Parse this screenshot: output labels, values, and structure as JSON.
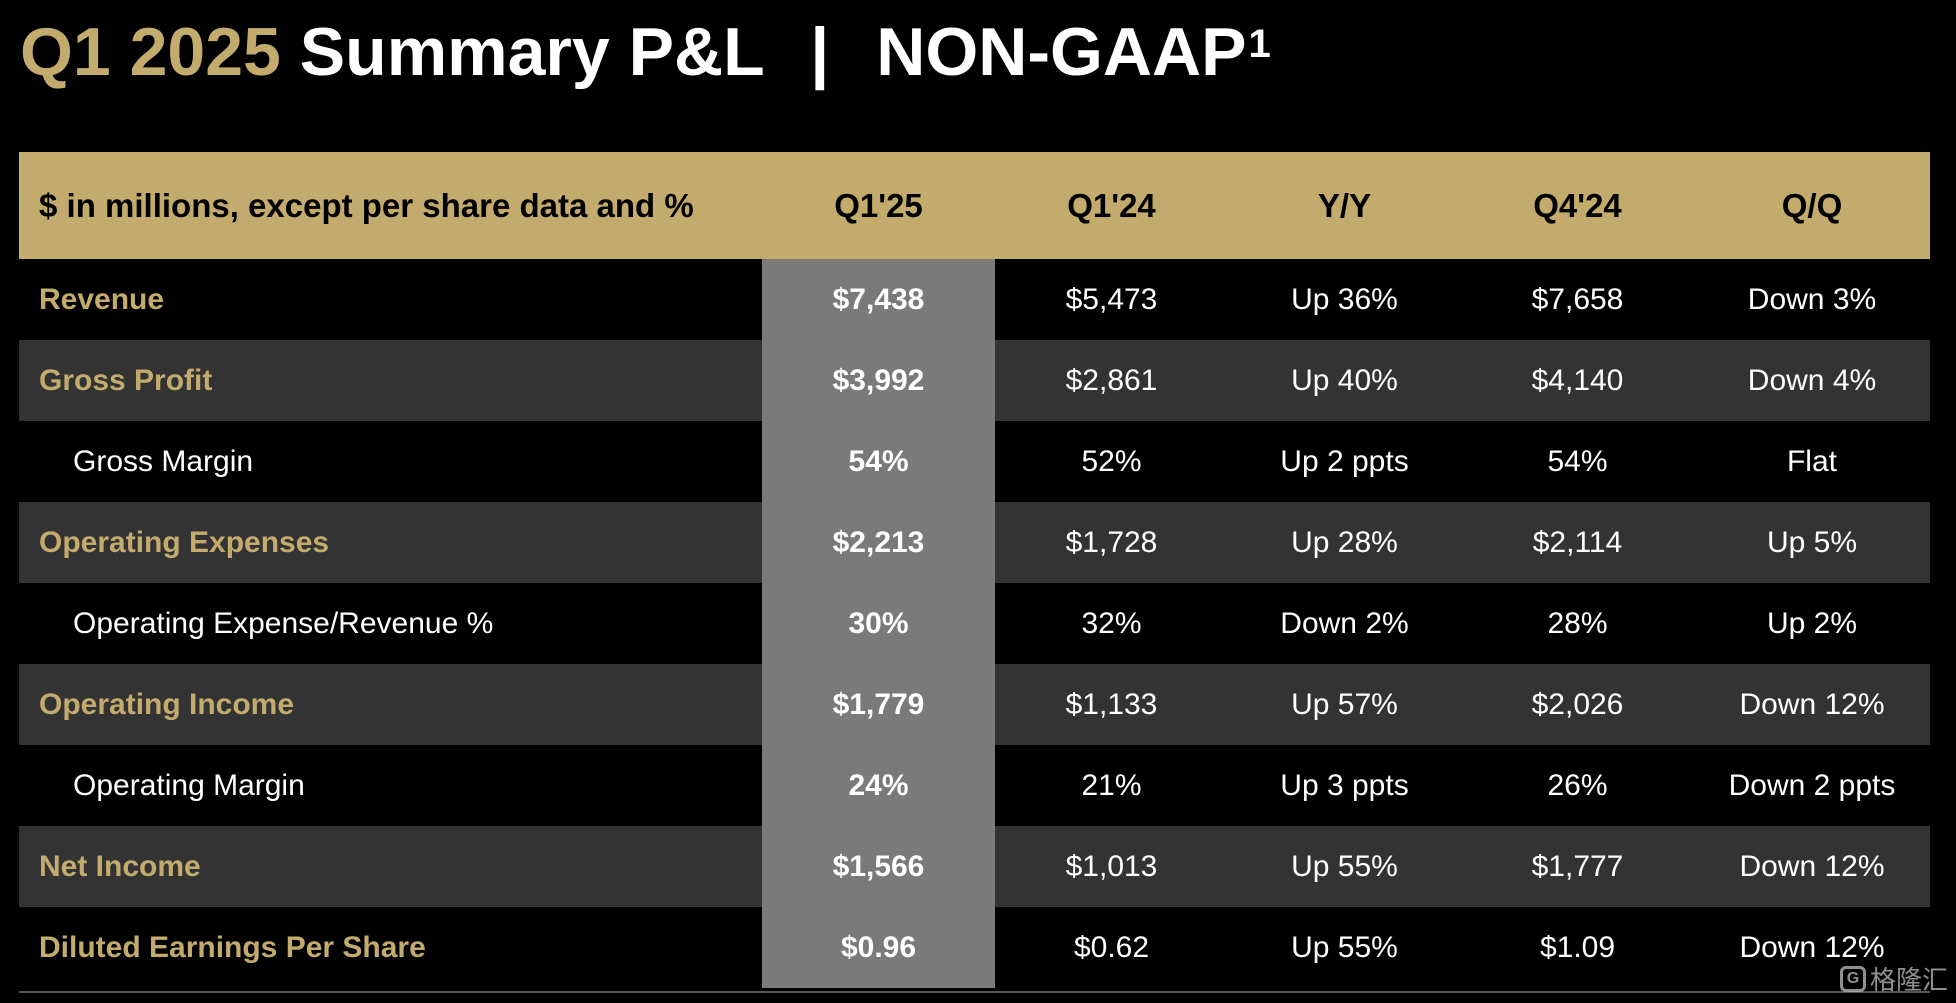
{
  "title": {
    "accent": "Q1 2025",
    "main": "Summary P&L",
    "separator": "|",
    "suffix": "NON-GAAP",
    "footnote": "1"
  },
  "table": {
    "columns": [
      "$ in millions, except per share data and %",
      "Q1'25",
      "Q1'24",
      "Y/Y",
      "Q4'24",
      "Q/Q"
    ],
    "rows": [
      {
        "label": "Revenue",
        "level": "major",
        "values": [
          "$7,438",
          "$5,473",
          "Up 36%",
          "$7,658",
          "Down 3%"
        ]
      },
      {
        "label": "Gross Profit",
        "level": "major",
        "values": [
          "$3,992",
          "$2,861",
          "Up 40%",
          "$4,140",
          "Down 4%"
        ]
      },
      {
        "label": "Gross Margin",
        "level": "minor",
        "values": [
          "54%",
          "52%",
          "Up 2 ppts",
          "54%",
          "Flat"
        ]
      },
      {
        "label": "Operating Expenses",
        "level": "major",
        "values": [
          "$2,213",
          "$1,728",
          "Up 28%",
          "$2,114",
          "Up 5%"
        ]
      },
      {
        "label": "Operating Expense/Revenue %",
        "level": "minor",
        "values": [
          "30%",
          "32%",
          "Down 2%",
          "28%",
          "Up 2%"
        ]
      },
      {
        "label": "Operating Income",
        "level": "major",
        "values": [
          "$1,779",
          "$1,133",
          "Up 57%",
          "$2,026",
          "Down 12%"
        ]
      },
      {
        "label": "Operating Margin",
        "level": "minor",
        "values": [
          "24%",
          "21%",
          "Up 3 ppts",
          "26%",
          "Down 2 ppts"
        ]
      },
      {
        "label": "Net Income",
        "level": "major",
        "values": [
          "$1,566",
          "$1,013",
          "Up 55%",
          "$1,777",
          "Down 12%"
        ]
      },
      {
        "label": "Diluted Earnings Per Share",
        "level": "major",
        "values": [
          "$0.96",
          "$0.62",
          "Up 55%",
          "$1.09",
          "Down 12%"
        ]
      }
    ]
  },
  "watermark": {
    "icon": "G",
    "text": "格隆汇"
  },
  "colors": {
    "accent_gold": "#c2ab6c",
    "highlight_column": "#7a7a7a",
    "shaded_row": "#333333",
    "background": "#000000"
  }
}
